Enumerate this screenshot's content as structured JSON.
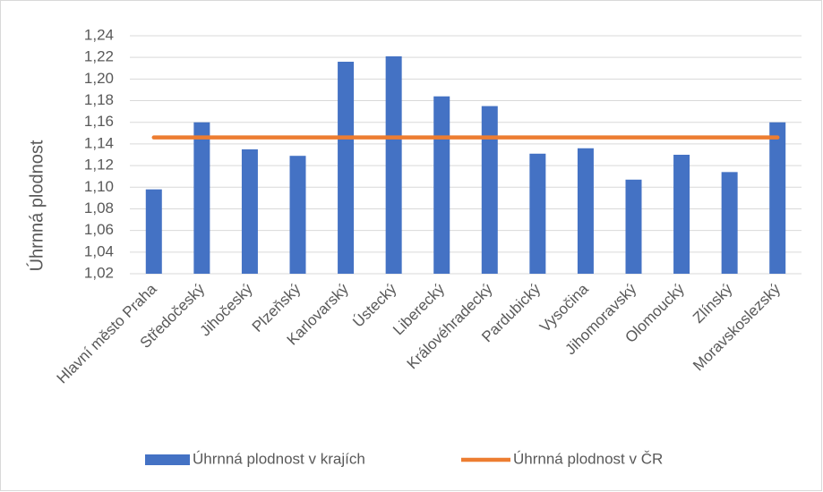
{
  "chart_data": {
    "type": "bar",
    "y_label": "Úhrnná plodnost",
    "categories": [
      "Hlavní  město Praha",
      "Středočeský",
      "Jihočeský",
      "Plzeňský",
      "Karlovarský",
      "Ústecký",
      "Liberecký",
      "Královéhradecký",
      "Pardubický",
      "Vysočina",
      "Jihomoravský",
      "Olomoucký",
      "Zlínský",
      "Moravskoslezský"
    ],
    "series": [
      {
        "name": "Úhrnná plodnost v krajích",
        "type": "bar",
        "color": "#4472c4",
        "values": [
          1.098,
          1.16,
          1.135,
          1.129,
          1.216,
          1.221,
          1.184,
          1.175,
          1.131,
          1.136,
          1.107,
          1.13,
          1.114,
          1.16
        ]
      },
      {
        "name": "Úhrnná plodnost v ČR",
        "type": "line",
        "color": "#ed7d31",
        "values": [
          1.146,
          1.146,
          1.146,
          1.146,
          1.146,
          1.146,
          1.146,
          1.146,
          1.146,
          1.146,
          1.146,
          1.146,
          1.146,
          1.146
        ]
      }
    ],
    "ylim": [
      1.02,
      1.24
    ],
    "yticks": [
      {
        "value": 1.02,
        "label": "1,02"
      },
      {
        "value": 1.04,
        "label": "1,04"
      },
      {
        "value": 1.06,
        "label": "1,06"
      },
      {
        "value": 1.08,
        "label": "1,08"
      },
      {
        "value": 1.1,
        "label": "1,10"
      },
      {
        "value": 1.12,
        "label": "1,12"
      },
      {
        "value": 1.14,
        "label": "1,14"
      },
      {
        "value": 1.16,
        "label": "1,16"
      },
      {
        "value": 1.18,
        "label": "1,18"
      },
      {
        "value": 1.2,
        "label": "1,20"
      },
      {
        "value": 1.22,
        "label": "1,22"
      },
      {
        "value": 1.24,
        "label": "1,24"
      }
    ],
    "grid": true,
    "legend": "bottom"
  }
}
